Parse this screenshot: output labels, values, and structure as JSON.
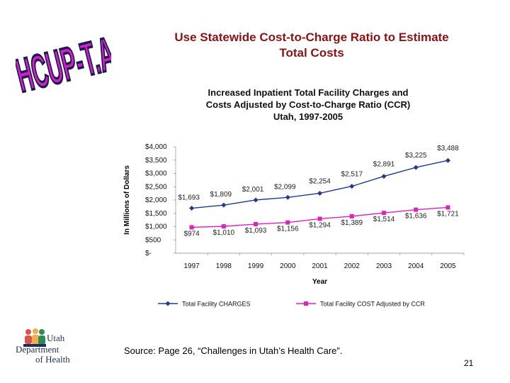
{
  "logo": {
    "text": "HCUP-T.A."
  },
  "slide": {
    "title": "Use Statewide Cost-to-Charge Ratio to Estimate Total Costs",
    "source": "Source: Page 26, “Challenges in Utah’s Health Care”.",
    "page_number": "21"
  },
  "department": {
    "line1": "Utah",
    "line2": "Department",
    "line3": "of Health"
  },
  "colors": {
    "title": "#8b1313",
    "charges": "#1f3b8f",
    "costs": "#e020c0",
    "logo_fill": "#d21fc6",
    "logo_outline": "#1a1a4e",
    "dept_text": "#1e2f5e"
  },
  "chart_data": {
    "type": "line",
    "title": "Increased Inpatient Total Facility Charges and\nCosts Adjusted by Cost-to-Charge Ratio (CCR)\nUtah, 1997-2005",
    "xlabel": "Year",
    "ylabel": "In Millions of Dollars",
    "categories": [
      "1997",
      "1998",
      "1999",
      "2000",
      "2001",
      "2002",
      "2003",
      "2004",
      "2005"
    ],
    "ylim": [
      0,
      4000
    ],
    "yticks": [
      {
        "value": 4000,
        "label": "$4,000"
      },
      {
        "value": 3500,
        "label": "$3,500"
      },
      {
        "value": 3000,
        "label": "$3,000"
      },
      {
        "value": 2500,
        "label": "$2,500"
      },
      {
        "value": 2000,
        "label": "$2,000"
      },
      {
        "value": 1500,
        "label": "$1,500"
      },
      {
        "value": 1000,
        "label": "$1,000"
      },
      {
        "value": 500,
        "label": "$500"
      },
      {
        "value": 0,
        "label": "$-"
      }
    ],
    "series": [
      {
        "name": "Total Facility CHARGES",
        "marker": "diamond",
        "values": [
          1693,
          1809,
          2001,
          2099,
          2254,
          2517,
          2891,
          3225,
          3488
        ],
        "labels": [
          "$1,693",
          "$1,809",
          "$2,001",
          "$2,099",
          "$2,254",
          "$2,517",
          "$2,891",
          "$3,225",
          "$3,488"
        ]
      },
      {
        "name": "Total Facility COST Adjusted by CCR",
        "marker": "square",
        "values": [
          974,
          1010,
          1093,
          1156,
          1294,
          1389,
          1514,
          1636,
          1721
        ],
        "labels": [
          "$974",
          "$1,010",
          "$1,093",
          "$1,156",
          "$1,294",
          "$1,389",
          "$1,514",
          "$1,636",
          "$1,721"
        ]
      }
    ],
    "legend": "bottom",
    "grid": false
  }
}
